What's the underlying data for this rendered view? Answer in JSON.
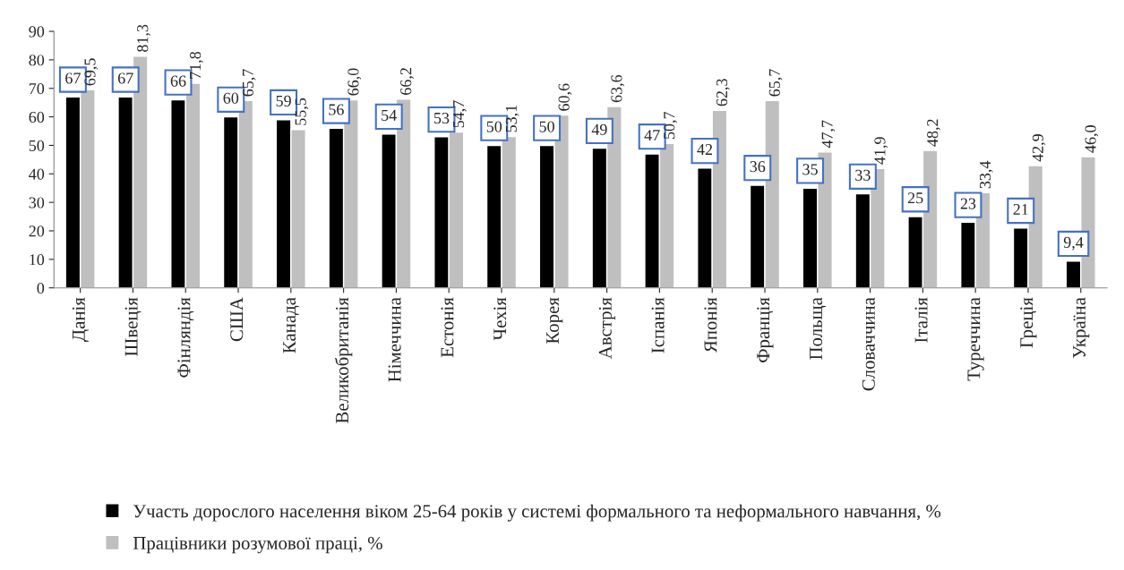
{
  "chart_data": {
    "type": "bar",
    "categories": [
      "Данія",
      "Швеція",
      "Фінляндія",
      "США",
      "Канада",
      "Великобританія",
      "Німеччина",
      "Естонія",
      "Чехія",
      "Корея",
      "Австрія",
      "Іспанія",
      "Японія",
      "Франція",
      "Польща",
      "Словаччина",
      "Італія",
      "Туреччина",
      "Греція",
      "Україна"
    ],
    "series": [
      {
        "name": "Участь дорослого населення віком 25-64 років у системі формального та неформального навчання, %",
        "color": "#000000",
        "values": [
          67,
          67,
          66,
          60,
          59,
          56,
          54,
          53,
          50,
          50,
          49,
          47,
          42,
          36,
          35,
          33,
          25,
          23,
          21,
          9.4
        ],
        "value_labels": [
          "67",
          "67",
          "66",
          "60",
          "59",
          "56",
          "54",
          "53",
          "50",
          "50",
          "49",
          "47",
          "42",
          "36",
          "35",
          "33",
          "25",
          "23",
          "21",
          "9,4"
        ]
      },
      {
        "name": "Працівники розумової праці, %",
        "color": "#bfbfbf",
        "values": [
          69.5,
          81.3,
          71.8,
          65.7,
          55.5,
          66.0,
          66.2,
          54.7,
          53.1,
          60.6,
          63.6,
          50.7,
          62.3,
          65.7,
          47.7,
          41.9,
          48.2,
          33.4,
          42.9,
          46.0
        ],
        "value_labels": [
          "69,5",
          "81,3",
          "71,8",
          "65,7",
          "55,5",
          "66,0",
          "66,2",
          "54,7",
          "53,1",
          "60,6",
          "63,6",
          "50,7",
          "62,3",
          "65,7",
          "47,7",
          "41,9",
          "48,2",
          "33,4",
          "42,9",
          "46,0"
        ]
      }
    ],
    "ylim": [
      0,
      90
    ],
    "yticks": [
      0,
      10,
      20,
      30,
      40,
      50,
      60,
      70,
      80,
      90
    ],
    "grid": false,
    "legend": "bottom"
  }
}
